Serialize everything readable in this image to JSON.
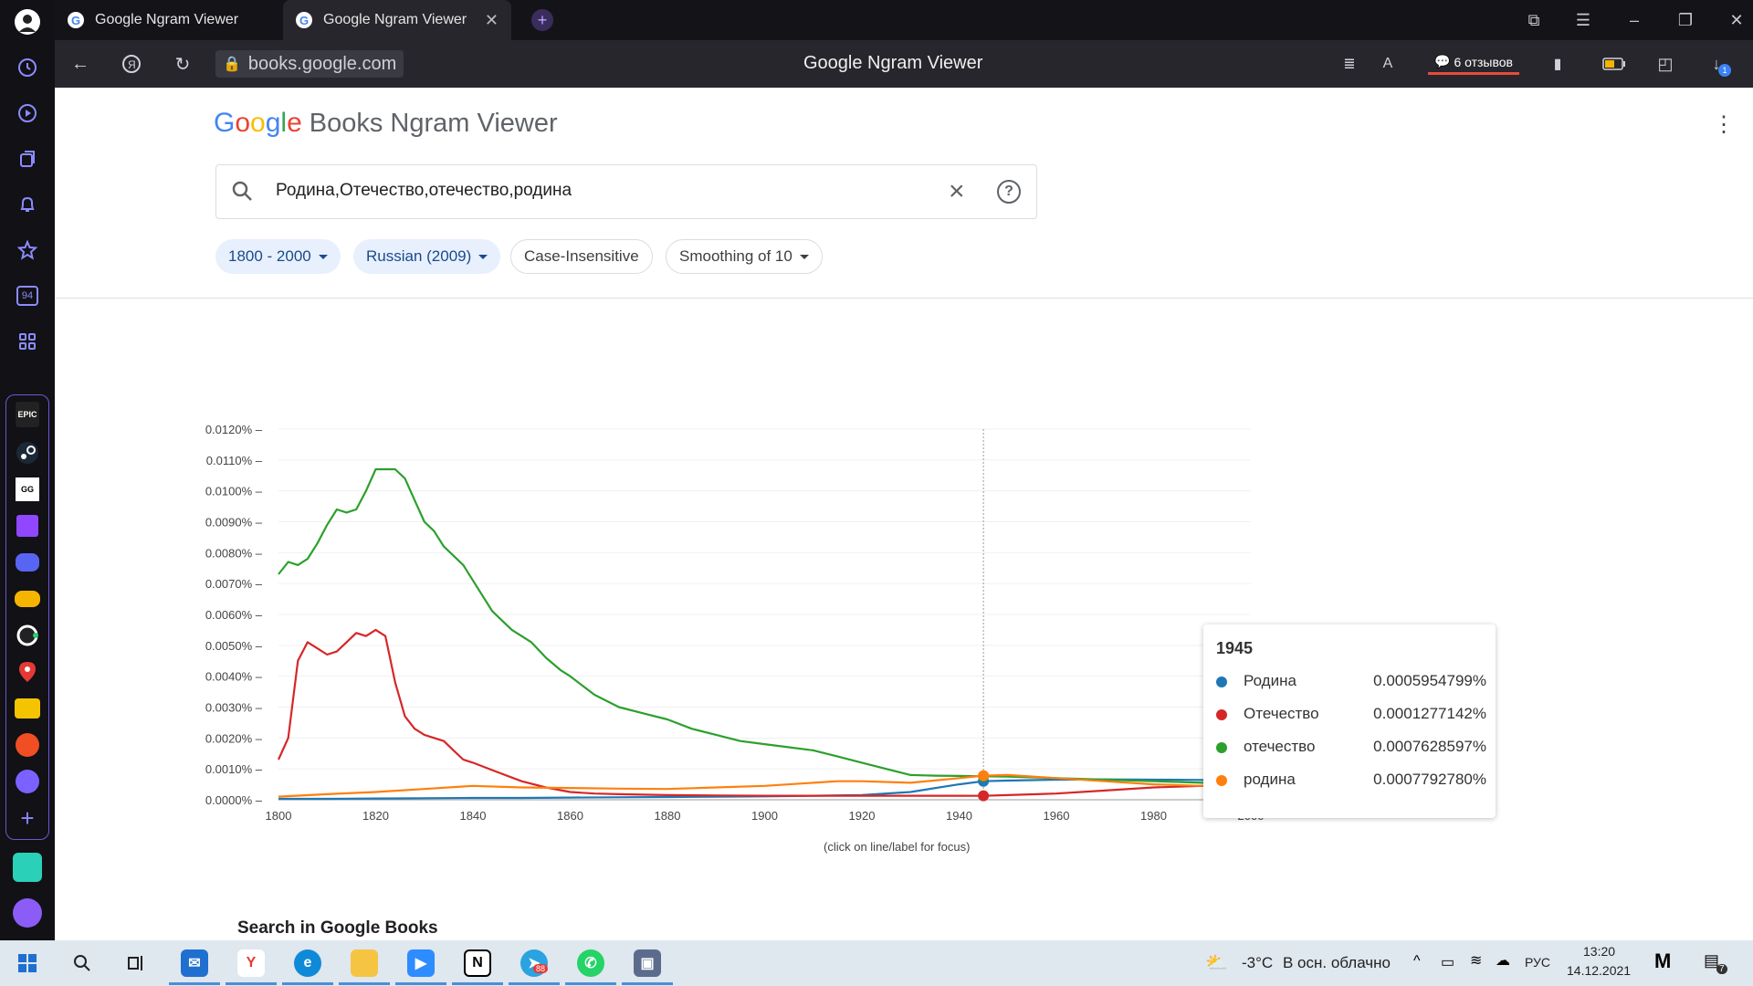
{
  "browser": {
    "tabs": [
      {
        "label": "Google Ngram Viewer",
        "active": false
      },
      {
        "label": "Google Ngram Viewer",
        "active": true
      }
    ],
    "address": "books.google.com",
    "page_title": "Google Ngram Viewer",
    "reviews": "6 отзывов",
    "download_badge": "1"
  },
  "page": {
    "logo_google": [
      "G",
      "o",
      "o",
      "g",
      "l",
      "e"
    ],
    "logo_rest": "Books Ngram Viewer",
    "search_value": "Родина,Отечество,отечество,родина",
    "chips": {
      "years": "1800 - 2000",
      "corpus": "Russian (2009)",
      "case": "Case-Insensitive",
      "smoothing": "Smoothing of 10"
    },
    "click_hint": "(click on line/label for focus)",
    "search_books": "Search in Google Books"
  },
  "tooltip": {
    "year": "1945",
    "rows": [
      {
        "name": "Родина",
        "value": "0.0005954799%",
        "color": "#1f77b4"
      },
      {
        "name": "Отечество",
        "value": "0.0001277142%",
        "color": "#d62728"
      },
      {
        "name": "отечество",
        "value": "0.0007628597%",
        "color": "#2ca02c"
      },
      {
        "name": "родина",
        "value": "0.0007792780%",
        "color": "#ff7f0e"
      }
    ]
  },
  "chart_data": {
    "type": "line",
    "xlim": [
      1800,
      2000
    ],
    "ylim": [
      0,
      0.012
    ],
    "x_ticks": [
      "1800",
      "1820",
      "1840",
      "1860",
      "1880",
      "1900",
      "1920",
      "1940",
      "1960",
      "1980",
      "2000"
    ],
    "y_ticks": [
      "0.0000%",
      "0.0010%",
      "0.0020%",
      "0.0030%",
      "0.0040%",
      "0.0050%",
      "0.0060%",
      "0.0070%",
      "0.0080%",
      "0.0090%",
      "0.0100%",
      "0.0110%",
      "0.0120%"
    ],
    "focus_year": 1945,
    "series": [
      {
        "name": "Родина",
        "color": "#1f77b4",
        "x": [
          1800,
          1810,
          1820,
          1830,
          1840,
          1850,
          1860,
          1870,
          1880,
          1890,
          1900,
          1910,
          1920,
          1930,
          1940,
          1945,
          1950,
          1960,
          1970,
          1980,
          1990,
          2000
        ],
        "values": [
          3e-05,
          3e-05,
          4e-05,
          5e-05,
          6e-05,
          6e-05,
          7e-05,
          8e-05,
          9e-05,
          0.0001,
          0.00011,
          0.00013,
          0.00015,
          0.00025,
          0.0005,
          0.0006,
          0.00062,
          0.00065,
          0.00066,
          0.00065,
          0.00064,
          0.00063
        ]
      },
      {
        "name": "Отечество",
        "color": "#d62728",
        "x": [
          1800,
          1802,
          1804,
          1806,
          1808,
          1810,
          1812,
          1814,
          1816,
          1818,
          1820,
          1822,
          1824,
          1826,
          1828,
          1830,
          1832,
          1834,
          1836,
          1838,
          1840,
          1845,
          1850,
          1855,
          1860,
          1865,
          1870,
          1880,
          1890,
          1900,
          1910,
          1920,
          1930,
          1940,
          1945,
          1950,
          1960,
          1970,
          1980,
          1990,
          2000
        ],
        "values": [
          0.0013,
          0.002,
          0.0045,
          0.0051,
          0.0049,
          0.0047,
          0.0048,
          0.0051,
          0.0054,
          0.0053,
          0.0055,
          0.0053,
          0.0038,
          0.0027,
          0.0023,
          0.0021,
          0.002,
          0.0019,
          0.0016,
          0.0013,
          0.0012,
          0.0009,
          0.0006,
          0.0004,
          0.00025,
          0.0002,
          0.00018,
          0.00015,
          0.00014,
          0.00013,
          0.00013,
          0.00013,
          0.00013,
          0.00013,
          0.000128,
          0.00015,
          0.0002,
          0.0003,
          0.0004,
          0.00045,
          0.0005
        ]
      },
      {
        "name": "отечество",
        "color": "#2ca02c",
        "x": [
          1800,
          1802,
          1804,
          1806,
          1808,
          1810,
          1812,
          1814,
          1816,
          1818,
          1820,
          1822,
          1824,
          1826,
          1828,
          1830,
          1832,
          1834,
          1836,
          1838,
          1840,
          1842,
          1844,
          1846,
          1848,
          1850,
          1852,
          1855,
          1858,
          1860,
          1865,
          1870,
          1875,
          1880,
          1885,
          1890,
          1895,
          1900,
          1905,
          1910,
          1915,
          1920,
          1925,
          1930,
          1935,
          1940,
          1945,
          1950,
          1960,
          1970,
          1980,
          1990,
          2000
        ],
        "values": [
          0.0073,
          0.0077,
          0.0076,
          0.0078,
          0.0083,
          0.0089,
          0.0094,
          0.0093,
          0.0094,
          0.01,
          0.0107,
          0.0107,
          0.0107,
          0.0104,
          0.0097,
          0.009,
          0.0087,
          0.0082,
          0.0079,
          0.0076,
          0.0071,
          0.0066,
          0.0061,
          0.0058,
          0.0055,
          0.0053,
          0.0051,
          0.0046,
          0.0042,
          0.004,
          0.0034,
          0.003,
          0.0028,
          0.0026,
          0.0023,
          0.0021,
          0.0019,
          0.0018,
          0.0017,
          0.0016,
          0.0014,
          0.0012,
          0.001,
          0.0008,
          0.00078,
          0.00077,
          0.00076,
          0.00075,
          0.0007,
          0.00065,
          0.0006,
          0.00055,
          0.0005
        ]
      },
      {
        "name": "родина",
        "color": "#ff7f0e",
        "x": [
          1800,
          1810,
          1820,
          1830,
          1840,
          1850,
          1860,
          1870,
          1880,
          1890,
          1900,
          1910,
          1915,
          1920,
          1930,
          1940,
          1945,
          1950,
          1960,
          1970,
          1980,
          1990,
          2000
        ],
        "values": [
          0.0001,
          0.00018,
          0.00025,
          0.00035,
          0.00045,
          0.0004,
          0.00038,
          0.00036,
          0.00035,
          0.0004,
          0.00045,
          0.00055,
          0.0006,
          0.0006,
          0.00055,
          0.0007,
          0.00078,
          0.0008,
          0.0007,
          0.0006,
          0.0005,
          0.00045,
          0.0004
        ]
      }
    ],
    "end_labels": [
      "Родина",
      "родина",
      "отечество",
      "Отечество"
    ]
  },
  "taskbar": {
    "weather_temp": "-3°C",
    "weather_desc": "В осн. облачно",
    "lang": "РУС",
    "time": "13:20",
    "date": "14.12.2021",
    "telegram_badge": "88",
    "notif_badge": "7",
    "sidebar_badge": "94"
  }
}
